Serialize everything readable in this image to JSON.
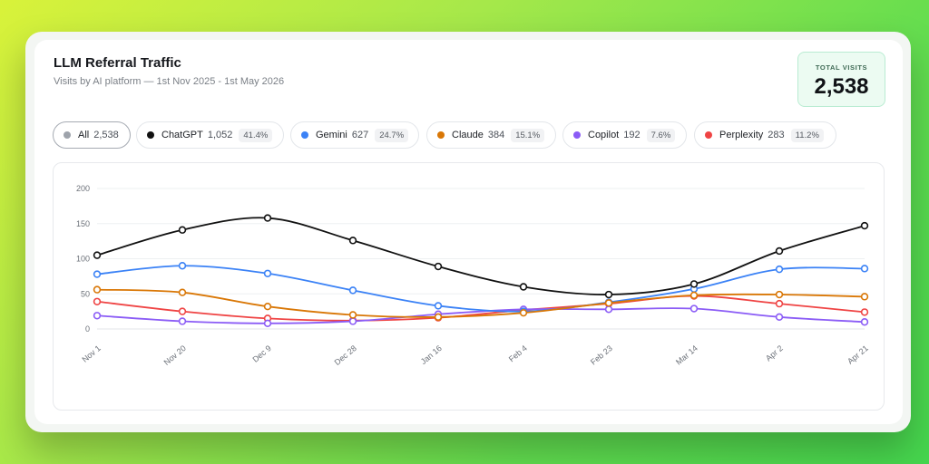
{
  "header": {
    "title": "LLM Referral Traffic",
    "subtitle": "Visits by AI platform — 1st Nov 2025 - 1st May 2026"
  },
  "total": {
    "label": "TOTAL VISITS",
    "value": "2,538"
  },
  "filters": [
    {
      "label": "All",
      "count": "2,538",
      "pct": "",
      "color": "#9ea3ab",
      "active": true
    },
    {
      "label": "ChatGPT",
      "count": "1,052",
      "pct": "41.4%",
      "color": "#111111",
      "active": false
    },
    {
      "label": "Gemini",
      "count": "627",
      "pct": "24.7%",
      "color": "#3b82f6",
      "active": false
    },
    {
      "label": "Claude",
      "count": "384",
      "pct": "15.1%",
      "color": "#d97706",
      "active": false
    },
    {
      "label": "Copilot",
      "count": "192",
      "pct": "7.6%",
      "color": "#8b5cf6",
      "active": false
    },
    {
      "label": "Perplexity",
      "count": "283",
      "pct": "11.2%",
      "color": "#ef4444",
      "active": false
    }
  ],
  "chart_data": {
    "type": "line",
    "categories": [
      "Nov 1",
      "Nov 20",
      "Dec 9",
      "Dec 28",
      "Jan 16",
      "Feb 4",
      "Feb 23",
      "Mar 14",
      "Apr 2",
      "Apr 21"
    ],
    "ylim": [
      0,
      200
    ],
    "yticks": [
      "0",
      "50",
      "100",
      "150",
      "200"
    ],
    "grid": true,
    "series": [
      {
        "name": "ChatGPT",
        "color": "#111111",
        "values": [
          105,
          141,
          158,
          126,
          89,
          60,
          49,
          64,
          111,
          147
        ]
      },
      {
        "name": "Gemini",
        "color": "#3b82f6",
        "values": [
          78,
          90,
          79,
          55,
          33,
          25,
          38,
          57,
          85,
          86
        ]
      },
      {
        "name": "Claude",
        "color": "#d97706",
        "values": [
          56,
          52,
          32,
          20,
          17,
          23,
          37,
          48,
          49,
          46
        ]
      },
      {
        "name": "Copilot",
        "color": "#8b5cf6",
        "values": [
          19,
          11,
          8,
          11,
          21,
          28,
          28,
          29,
          17,
          10
        ]
      },
      {
        "name": "Perplexity",
        "color": "#ef4444",
        "values": [
          39,
          25,
          15,
          12,
          16,
          27,
          36,
          47,
          36,
          24
        ]
      }
    ]
  }
}
